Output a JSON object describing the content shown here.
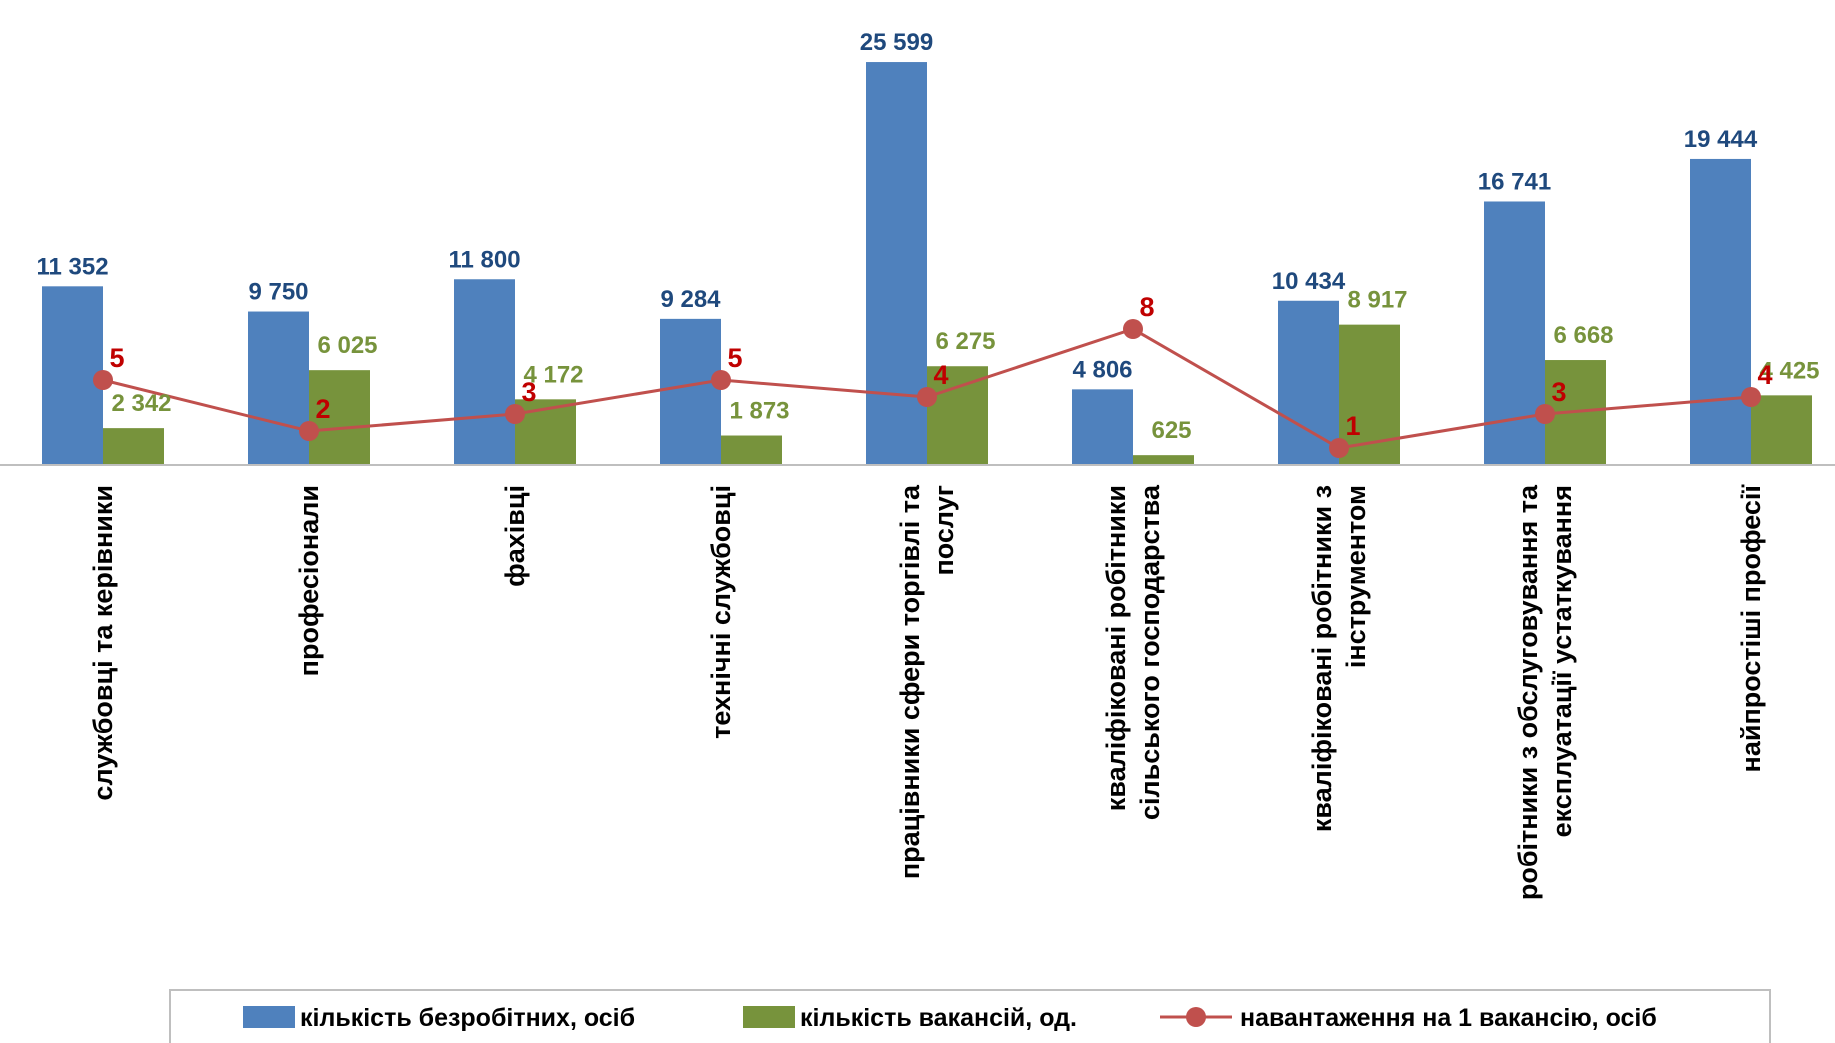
{
  "chart_data": {
    "type": "bar",
    "categories": [
      [
        "службовці та керівники"
      ],
      [
        "професіонали"
      ],
      [
        "фахівці"
      ],
      [
        "технічні службовці"
      ],
      [
        "працівники сфери торгівлі та",
        "послуг"
      ],
      [
        "кваліфіковані робітники",
        "сільського господарства"
      ],
      [
        "кваліфіковані робітники з",
        "інструментом"
      ],
      [
        "робітники з обслуговування та",
        "експлуатації устаткування"
      ],
      [
        "найпростіші професії"
      ]
    ],
    "series": [
      {
        "name": "кількість безробітних, осіб",
        "type": "bar",
        "color": "#4f81bd",
        "label_color": "#1f497d",
        "values": [
          11352,
          9750,
          11800,
          9284,
          25599,
          4806,
          10434,
          16741,
          19444
        ],
        "labels": [
          "11 352",
          "9 750",
          "11 800",
          "9 284",
          "25 599",
          "4 806",
          "10 434",
          "16 741",
          "19 444"
        ]
      },
      {
        "name": "кількість вакансій, од.",
        "type": "bar",
        "color": "#77933c",
        "label_color": "#77933c",
        "values": [
          2342,
          6025,
          4172,
          1873,
          6275,
          625,
          8917,
          6668,
          4425
        ],
        "labels": [
          "2 342",
          "6 025",
          "4 172",
          "1 873",
          "6 275",
          "625",
          "8 917",
          "6 668",
          "4 425"
        ]
      },
      {
        "name": "навантаження на 1 вакансію, осіб",
        "type": "line",
        "color": "#c0504d",
        "label_color": "#c00000",
        "values": [
          5,
          2,
          3,
          5,
          4,
          8,
          1,
          3,
          4
        ],
        "labels": [
          "5",
          "2",
          "3",
          "5",
          "4",
          "8",
          "1",
          "3",
          "4"
        ]
      }
    ],
    "ylim": [
      0,
      27000
    ],
    "y2lim": [
      0,
      25
    ],
    "grid": false,
    "legend_position": "bottom"
  }
}
